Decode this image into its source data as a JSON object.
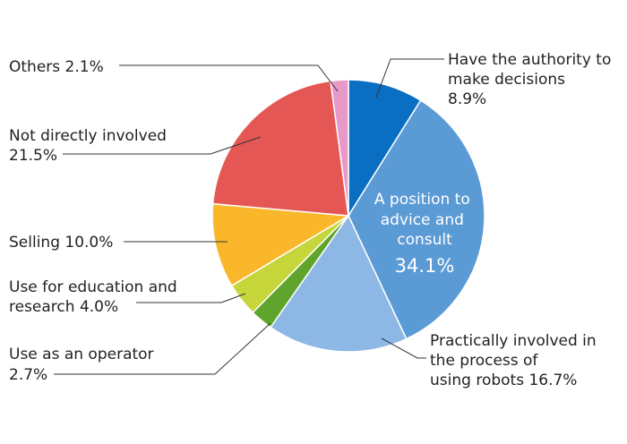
{
  "chart_data": {
    "type": "pie",
    "start": "12 o'clock, clockwise",
    "slices": [
      {
        "key": "authority",
        "lines": [
          "Have the authority to",
          "make decisions",
          "8.9%"
        ],
        "value": 8.9,
        "color": "#0a6fc2"
      },
      {
        "key": "advice",
        "lines": [
          "A position to",
          "advice  and",
          "consult",
          "34.1%"
        ],
        "value": 34.1,
        "color": "#5b9bd5"
      },
      {
        "key": "practical",
        "lines": [
          "Practically involved in",
          "the process of",
          "using robots   16.7%"
        ],
        "value": 16.7,
        "color": "#8db8e6"
      },
      {
        "key": "operator",
        "lines": [
          "Use as an operator",
          "2.7%"
        ],
        "value": 2.7,
        "color": "#5fa52c"
      },
      {
        "key": "education",
        "lines": [
          "Use for education and",
          "research    4.0%"
        ],
        "value": 4.0,
        "color": "#c6d63a"
      },
      {
        "key": "selling",
        "lines": [
          "Selling    10.0%"
        ],
        "value": 10.0,
        "color": "#fbb72b"
      },
      {
        "key": "notinvolved",
        "lines": [
          "Not directly involved",
          "21.5%"
        ],
        "value": 21.5,
        "color": "#e55754"
      },
      {
        "key": "others",
        "lines": [
          "Others    2.1%"
        ],
        "value": 2.1,
        "color": "#e79ac7"
      }
    ]
  }
}
